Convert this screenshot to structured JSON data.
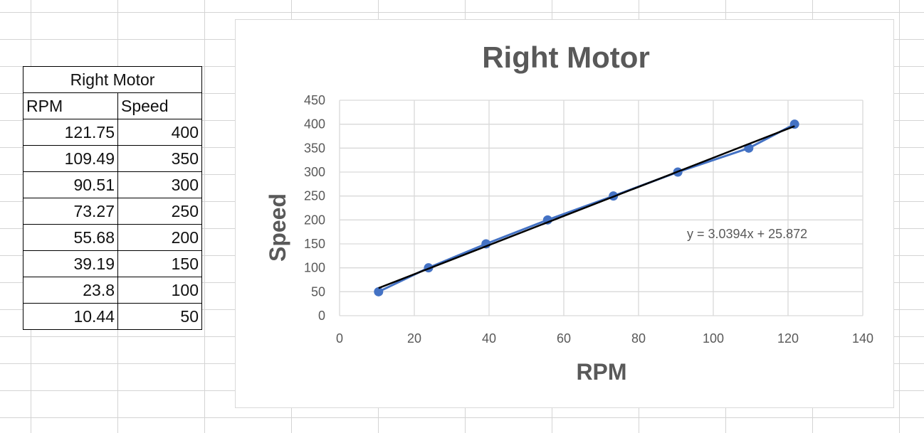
{
  "table": {
    "title": "Right Motor",
    "headers": [
      "RPM",
      "Speed"
    ],
    "rows": [
      [
        "121.75",
        "400"
      ],
      [
        "109.49",
        "350"
      ],
      [
        "90.51",
        "300"
      ],
      [
        "73.27",
        "250"
      ],
      [
        "55.68",
        "200"
      ],
      [
        "39.19",
        "150"
      ],
      [
        "23.8",
        "100"
      ],
      [
        "10.44",
        "50"
      ]
    ]
  },
  "chart_data": {
    "type": "scatter",
    "title": "Right Motor",
    "xlabel": "RPM",
    "ylabel": "Speed",
    "xlim": [
      0,
      140
    ],
    "ylim": [
      0,
      450
    ],
    "x_ticks": [
      "0",
      "20",
      "40",
      "60",
      "80",
      "100",
      "120",
      "140"
    ],
    "y_ticks": [
      "0",
      "50",
      "100",
      "150",
      "200",
      "250",
      "300",
      "350",
      "400",
      "450"
    ],
    "grid": true,
    "legend": "none",
    "series": [
      {
        "x": [
          121.75,
          109.49,
          90.51,
          73.27,
          55.68,
          39.19,
          23.8,
          10.44
        ],
        "y": [
          400,
          350,
          300,
          250,
          200,
          150,
          100,
          50
        ],
        "color": "#4472c4",
        "lines": true,
        "markers": true
      }
    ],
    "trendline": {
      "type": "linear",
      "slope": 3.0394,
      "intercept": 25.872,
      "equation": "y = 3.0394x + 25.872",
      "color": "#000000"
    }
  }
}
